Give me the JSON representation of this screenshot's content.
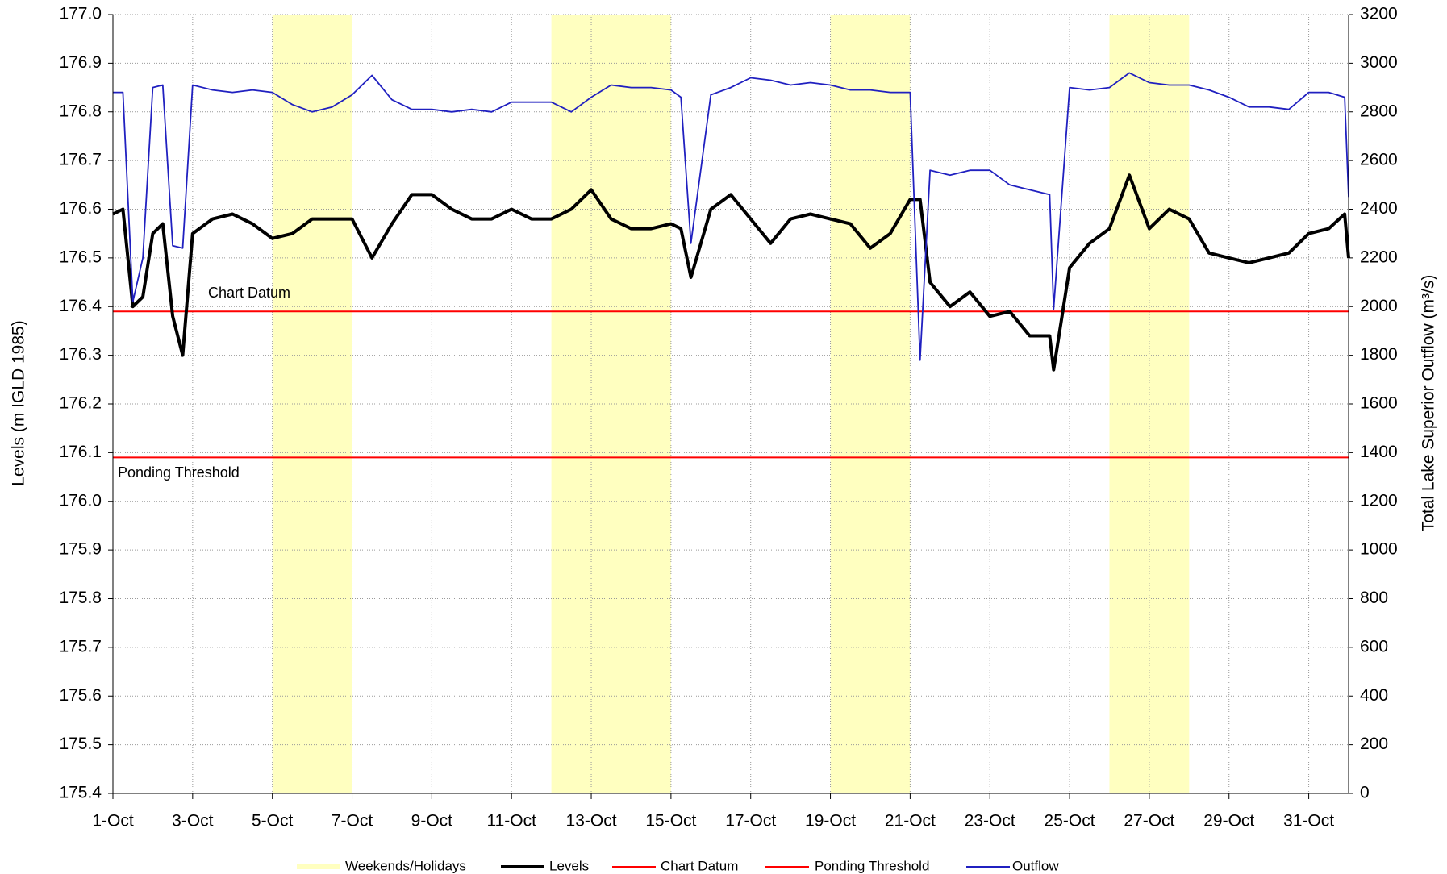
{
  "chart_data": {
    "type": "line",
    "ylabel": "Levels (m IGLD 1985)",
    "y2label": "Total Lake Superior Outflow (m³/s)",
    "xlim": [
      1,
      32
    ],
    "xticks": [
      {
        "value": 1,
        "label": "1-Oct"
      },
      {
        "value": 3,
        "label": "3-Oct"
      },
      {
        "value": 5,
        "label": "5-Oct"
      },
      {
        "value": 7,
        "label": "7-Oct"
      },
      {
        "value": 9,
        "label": "9-Oct"
      },
      {
        "value": 11,
        "label": "11-Oct"
      },
      {
        "value": 13,
        "label": "13-Oct"
      },
      {
        "value": 15,
        "label": "15-Oct"
      },
      {
        "value": 17,
        "label": "17-Oct"
      },
      {
        "value": 19,
        "label": "19-Oct"
      },
      {
        "value": 21,
        "label": "21-Oct"
      },
      {
        "value": 23,
        "label": "23-Oct"
      },
      {
        "value": 25,
        "label": "25-Oct"
      },
      {
        "value": 27,
        "label": "27-Oct"
      },
      {
        "value": 29,
        "label": "29-Oct"
      },
      {
        "value": 31,
        "label": "31-Oct"
      }
    ],
    "ylim": [
      175.4,
      177.0
    ],
    "yticks": [
      175.4,
      175.5,
      175.6,
      175.7,
      175.8,
      175.9,
      {
        "value": 176.0,
        "label": "176.0"
      },
      176.1,
      176.2,
      176.3,
      176.4,
      176.5,
      176.6,
      176.7,
      176.8,
      176.9,
      {
        "value": 177.0,
        "label": "177.0"
      }
    ],
    "y2lim": [
      0,
      3200
    ],
    "y2ticks": [
      0,
      200,
      400,
      600,
      800,
      1000,
      1200,
      1400,
      1600,
      1800,
      2000,
      2200,
      2400,
      2600,
      2800,
      3000,
      3200
    ],
    "grid": true,
    "legend": "bottom",
    "bands": {
      "name": "Weekends/Holidays",
      "color": "#ffffc0",
      "ranges": [
        [
          5,
          7
        ],
        [
          12,
          15
        ],
        [
          19,
          21
        ],
        [
          26,
          28
        ]
      ]
    },
    "reference_lines": [
      {
        "name": "Chart Datum",
        "value": 176.39,
        "color": "#ff0000"
      },
      {
        "name": "Ponding Threshold",
        "value": 176.09,
        "color": "#ff0000"
      }
    ],
    "x": [
      1,
      1.25,
      1.5,
      1.75,
      2,
      2.25,
      2.5,
      2.75,
      3,
      3.5,
      4,
      4.5,
      5,
      5.5,
      6,
      6.5,
      7,
      7.5,
      8,
      8.5,
      9,
      9.5,
      10,
      10.5,
      11,
      11.5,
      12,
      12.5,
      13,
      13.5,
      14,
      14.5,
      15,
      15.25,
      15.5,
      16,
      16.5,
      17,
      17.5,
      18,
      18.5,
      19,
      19.5,
      20,
      20.5,
      21,
      21.25,
      21.5,
      22,
      22.5,
      23,
      23.5,
      24,
      24.5,
      24.6,
      25,
      25.5,
      26,
      26.5,
      27,
      27.5,
      28,
      28.5,
      29,
      29.5,
      30,
      30.5,
      31,
      31.5,
      31.9,
      32
    ],
    "series": [
      {
        "name": "Levels",
        "color": "#000000",
        "values": [
          176.59,
          176.6,
          176.4,
          176.42,
          176.55,
          176.57,
          176.38,
          176.3,
          176.55,
          176.58,
          176.59,
          176.57,
          176.54,
          176.55,
          176.58,
          176.58,
          176.58,
          176.5,
          176.57,
          176.63,
          176.63,
          176.6,
          176.58,
          176.58,
          176.6,
          176.58,
          176.58,
          176.6,
          176.64,
          176.58,
          176.56,
          176.56,
          176.57,
          176.56,
          176.46,
          176.6,
          176.63,
          176.58,
          176.53,
          176.58,
          176.59,
          176.58,
          176.57,
          176.52,
          176.55,
          176.62,
          176.62,
          176.45,
          176.4,
          176.43,
          176.38,
          176.39,
          176.34,
          176.34,
          176.27,
          176.48,
          176.53,
          176.56,
          176.67,
          176.56,
          176.6,
          176.58,
          176.51,
          176.5,
          176.49,
          176.5,
          176.51,
          176.55,
          176.56,
          176.59,
          176.5
        ]
      },
      {
        "name": "Outflow",
        "color": "#2020c0",
        "axis": "y2",
        "values": [
          2880,
          2880,
          2020,
          2200,
          2900,
          2910,
          2250,
          2240,
          2910,
          2890,
          2880,
          2890,
          2880,
          2830,
          2800,
          2820,
          2870,
          2950,
          2850,
          2810,
          2810,
          2800,
          2810,
          2800,
          2840,
          2840,
          2840,
          2800,
          2860,
          2910,
          2900,
          2900,
          2890,
          2860,
          2260,
          2870,
          2900,
          2940,
          2930,
          2910,
          2920,
          2910,
          2890,
          2890,
          2880,
          2880,
          1780,
          2560,
          2540,
          2560,
          2560,
          2500,
          2480,
          2460,
          1990,
          2900,
          2890,
          2900,
          2960,
          2920,
          2910,
          2910,
          2890,
          2860,
          2820,
          2820,
          2810,
          2880,
          2880,
          2860,
          2450
        ]
      }
    ]
  }
}
